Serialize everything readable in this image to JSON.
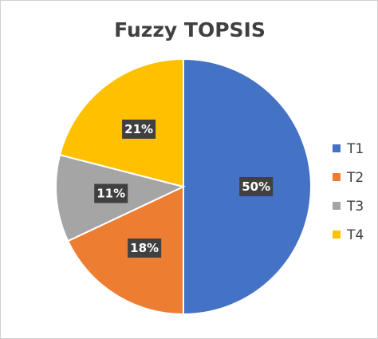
{
  "chart_data": {
    "type": "pie",
    "title": "Fuzzy TOPSIS",
    "categories": [
      "T1",
      "T2",
      "T3",
      "T4"
    ],
    "values": [
      50,
      18,
      11,
      21
    ],
    "data_labels": [
      "50%",
      "18%",
      "11%",
      "21%"
    ],
    "colors": [
      "#4472C4",
      "#ED7D31",
      "#A5A5A5",
      "#FFC000"
    ],
    "label_box_color": "#404040",
    "start_angle_deg": 0,
    "direction": "clockwise",
    "legend_position": "right"
  }
}
